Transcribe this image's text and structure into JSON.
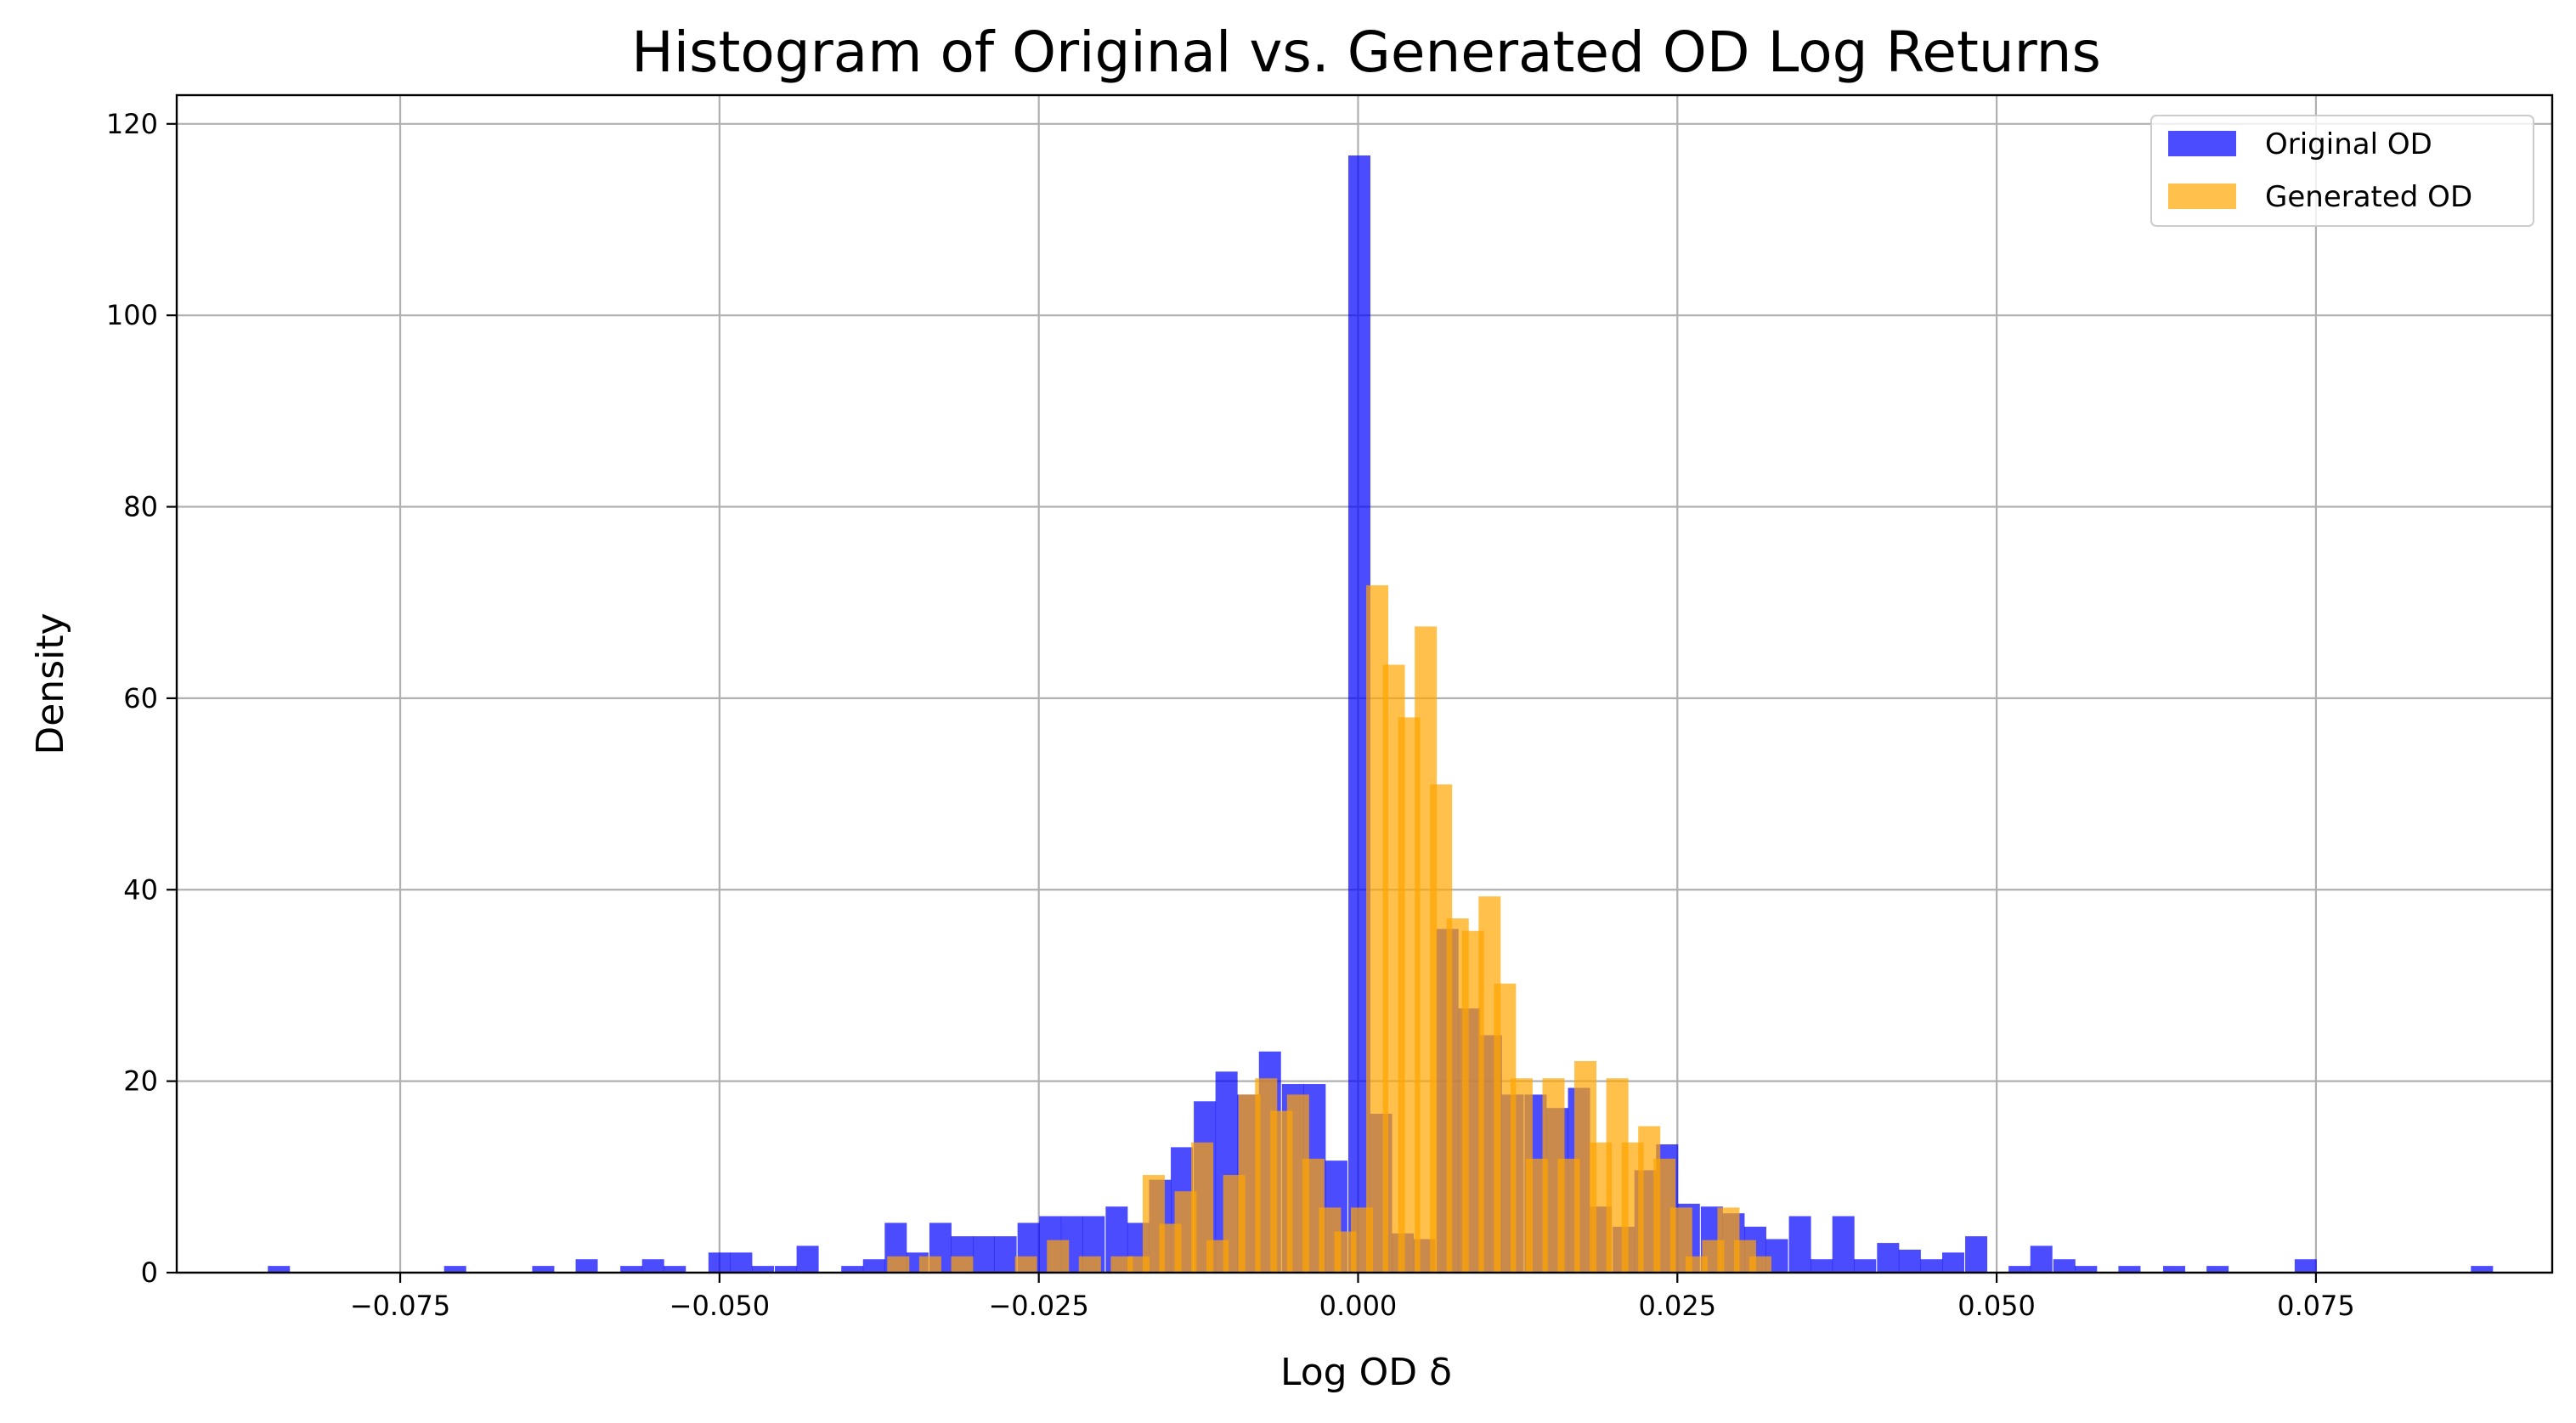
{
  "chart_data": {
    "type": "histogram",
    "title": "Histogram of Original vs. Generated OD Log Returns",
    "xlabel": "Log OD δ",
    "ylabel": "Density",
    "xlim": [
      -0.0925,
      0.0935
    ],
    "ylim": [
      0,
      123
    ],
    "grid": true,
    "legend_position": "top-right",
    "xticks": [
      -0.075,
      -0.05,
      -0.025,
      0.0,
      0.025,
      0.05,
      0.075
    ],
    "xtick_labels": [
      "−0.075",
      "−0.050",
      "−0.025",
      "0.000",
      "0.025",
      "0.050",
      "0.075"
    ],
    "yticks": [
      0,
      20,
      40,
      60,
      80,
      100,
      120
    ],
    "ytick_labels": [
      "0",
      "20",
      "40",
      "60",
      "80",
      "100",
      "120"
    ],
    "bin_width": 0.00173,
    "series": [
      {
        "name": "Original OD",
        "color": "#0000ff",
        "opacity": 0.7,
        "bins": [
          [
            -0.0845,
            0.7
          ],
          [
            -0.0707,
            0.7
          ],
          [
            -0.0638,
            0.7
          ],
          [
            -0.0604,
            1.4
          ],
          [
            -0.0569,
            0.7
          ],
          [
            -0.0552,
            1.4
          ],
          [
            -0.0535,
            0.7
          ],
          [
            -0.05,
            2.1
          ],
          [
            -0.0483,
            2.1
          ],
          [
            -0.0466,
            0.7
          ],
          [
            -0.0448,
            0.7
          ],
          [
            -0.0431,
            2.8
          ],
          [
            -0.0396,
            0.7
          ],
          [
            -0.0379,
            1.4
          ],
          [
            -0.0362,
            5.2
          ],
          [
            -0.0345,
            2.1
          ],
          [
            -0.0327,
            5.2
          ],
          [
            -0.031,
            3.8
          ],
          [
            -0.0293,
            3.8
          ],
          [
            -0.0276,
            3.8
          ],
          [
            -0.0258,
            5.2
          ],
          [
            -0.0241,
            5.9
          ],
          [
            -0.0224,
            5.9
          ],
          [
            -0.0207,
            5.9
          ],
          [
            -0.0189,
            6.9
          ],
          [
            -0.0172,
            5.2
          ],
          [
            -0.0155,
            9.7
          ],
          [
            -0.0138,
            13.1
          ],
          [
            -0.012,
            17.9
          ],
          [
            -0.0103,
            21.0
          ],
          [
            -0.0086,
            18.6
          ],
          [
            -0.0069,
            23.1
          ],
          [
            -0.0051,
            19.7
          ],
          [
            -0.0034,
            19.7
          ],
          [
            -0.0017,
            11.7
          ],
          [
            0.0001,
            116.7
          ],
          [
            0.0018,
            16.6
          ],
          [
            0.0035,
            4.1
          ],
          [
            0.0052,
            3.5
          ],
          [
            0.007,
            35.9
          ],
          [
            0.0087,
            27.6
          ],
          [
            0.0104,
            24.8
          ],
          [
            0.0121,
            18.6
          ],
          [
            0.0139,
            18.6
          ],
          [
            0.0156,
            17.2
          ],
          [
            0.0173,
            19.3
          ],
          [
            0.019,
            6.9
          ],
          [
            0.0208,
            4.8
          ],
          [
            0.0225,
            10.7
          ],
          [
            0.0242,
            13.4
          ],
          [
            0.0259,
            7.2
          ],
          [
            0.0277,
            6.9
          ],
          [
            0.0294,
            6.2
          ],
          [
            0.0311,
            4.8
          ],
          [
            0.0328,
            3.5
          ],
          [
            0.0346,
            5.9
          ],
          [
            0.0363,
            1.4
          ],
          [
            0.038,
            5.9
          ],
          [
            0.0397,
            1.4
          ],
          [
            0.0415,
            3.1
          ],
          [
            0.0432,
            2.4
          ],
          [
            0.0449,
            1.4
          ],
          [
            0.0466,
            2.1
          ],
          [
            0.0484,
            3.8
          ],
          [
            0.0518,
            0.7
          ],
          [
            0.0535,
            2.8
          ],
          [
            0.0553,
            1.4
          ],
          [
            0.057,
            0.7
          ],
          [
            0.0604,
            0.7
          ],
          [
            0.0639,
            0.7
          ],
          [
            0.0673,
            0.7
          ],
          [
            0.0742,
            1.4
          ],
          [
            0.088,
            0.7
          ]
        ]
      },
      {
        "name": "Generated OD",
        "color": "#ffa500",
        "opacity": 0.7,
        "bins": [
          [
            -0.036,
            1.7
          ],
          [
            -0.0335,
            1.7
          ],
          [
            -0.031,
            1.7
          ],
          [
            -0.026,
            1.7
          ],
          [
            -0.0235,
            3.4
          ],
          [
            -0.021,
            1.7
          ],
          [
            -0.0185,
            1.7
          ],
          [
            -0.0172,
            1.7
          ],
          [
            -0.016,
            10.2
          ],
          [
            -0.0147,
            5.1
          ],
          [
            -0.0135,
            8.5
          ],
          [
            -0.0122,
            13.6
          ],
          [
            -0.011,
            3.4
          ],
          [
            -0.0097,
            10.2
          ],
          [
            -0.0085,
            18.6
          ],
          [
            -0.0072,
            20.3
          ],
          [
            -0.006,
            16.9
          ],
          [
            -0.0047,
            18.6
          ],
          [
            -0.0035,
            11.9
          ],
          [
            -0.0022,
            6.8
          ],
          [
            -0.001,
            4.3
          ],
          [
            0.0003,
            6.8
          ],
          [
            0.0015,
            71.8
          ],
          [
            0.0028,
            63.5
          ],
          [
            0.004,
            58.0
          ],
          [
            0.0053,
            67.5
          ],
          [
            0.0065,
            51.0
          ],
          [
            0.0078,
            37.0
          ],
          [
            0.009,
            35.7
          ],
          [
            0.0103,
            39.3
          ],
          [
            0.0115,
            30.2
          ],
          [
            0.0128,
            20.3
          ],
          [
            0.014,
            11.9
          ],
          [
            0.0153,
            20.3
          ],
          [
            0.0165,
            11.9
          ],
          [
            0.0178,
            22.1
          ],
          [
            0.019,
            13.6
          ],
          [
            0.0203,
            20.3
          ],
          [
            0.0215,
            13.6
          ],
          [
            0.0228,
            15.3
          ],
          [
            0.024,
            11.9
          ],
          [
            0.0253,
            6.8
          ],
          [
            0.0265,
            1.7
          ],
          [
            0.0278,
            3.4
          ],
          [
            0.029,
            6.8
          ],
          [
            0.0303,
            3.4
          ],
          [
            0.0315,
            1.7
          ]
        ]
      }
    ]
  }
}
